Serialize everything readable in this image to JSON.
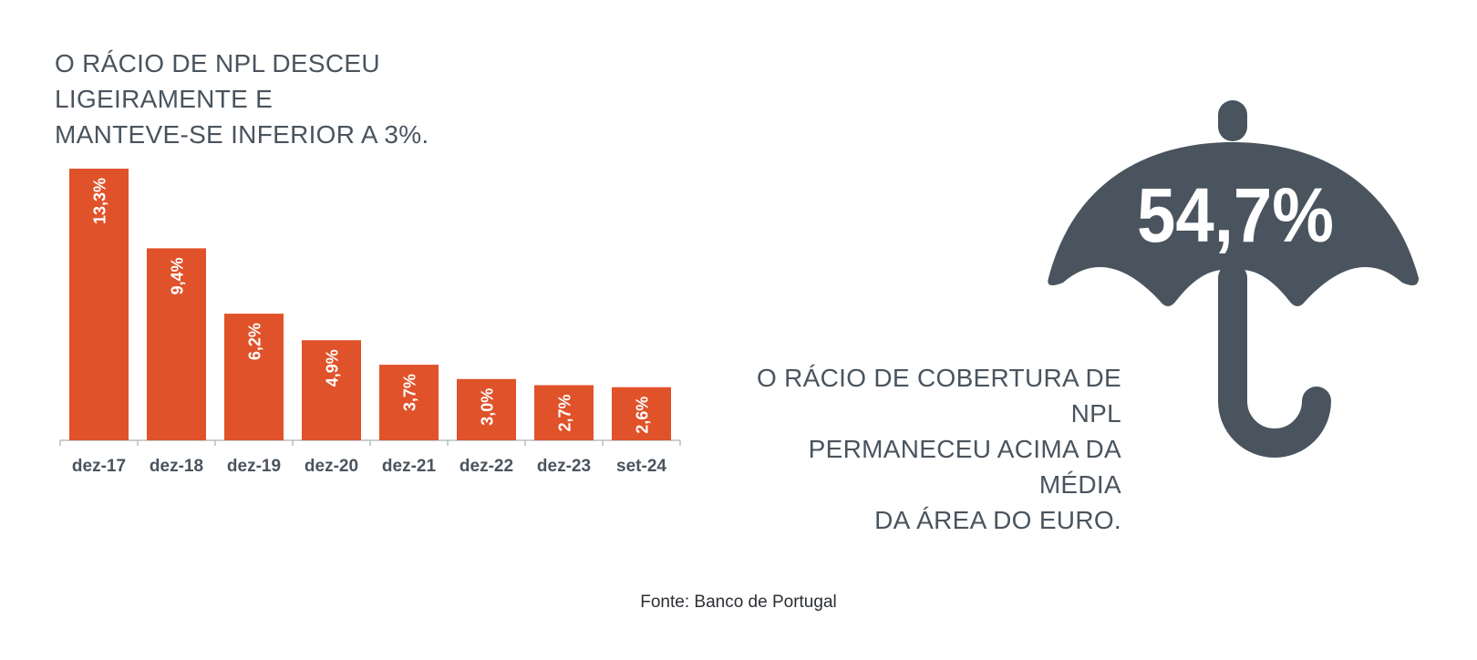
{
  "headline": {
    "line1": "O RÁCIO DE NPL DESCEU LIGEIRAMENTE E",
    "line2": "MANTEVE-SE INFERIOR A 3%."
  },
  "chart_data": {
    "type": "bar",
    "categories": [
      "dez-17",
      "dez-18",
      "dez-19",
      "dez-20",
      "dez-21",
      "dez-22",
      "dez-23",
      "set-24"
    ],
    "values": [
      13.3,
      9.4,
      6.2,
      4.9,
      3.7,
      3.0,
      2.7,
      2.6
    ],
    "data_labels": [
      "13,3%",
      "9,4%",
      "6,2%",
      "4,9%",
      "3,7%",
      "3,0%",
      "2,7%",
      "2,6%"
    ],
    "ylim": [
      0,
      13.3
    ],
    "title": "",
    "xlabel": "",
    "ylabel": "",
    "grid": false,
    "bar_color": "#e0522a"
  },
  "coverage": {
    "value": "54,7%",
    "line1": "O RÁCIO DE COBERTURA DE NPL",
    "line2": "PERMANECEU ACIMA DA MÉDIA",
    "line3": "DA ÁREA DO EURO.",
    "icon": "umbrella-icon",
    "icon_color": "#4a545e"
  },
  "source": "Fonte: Banco de Portugal"
}
